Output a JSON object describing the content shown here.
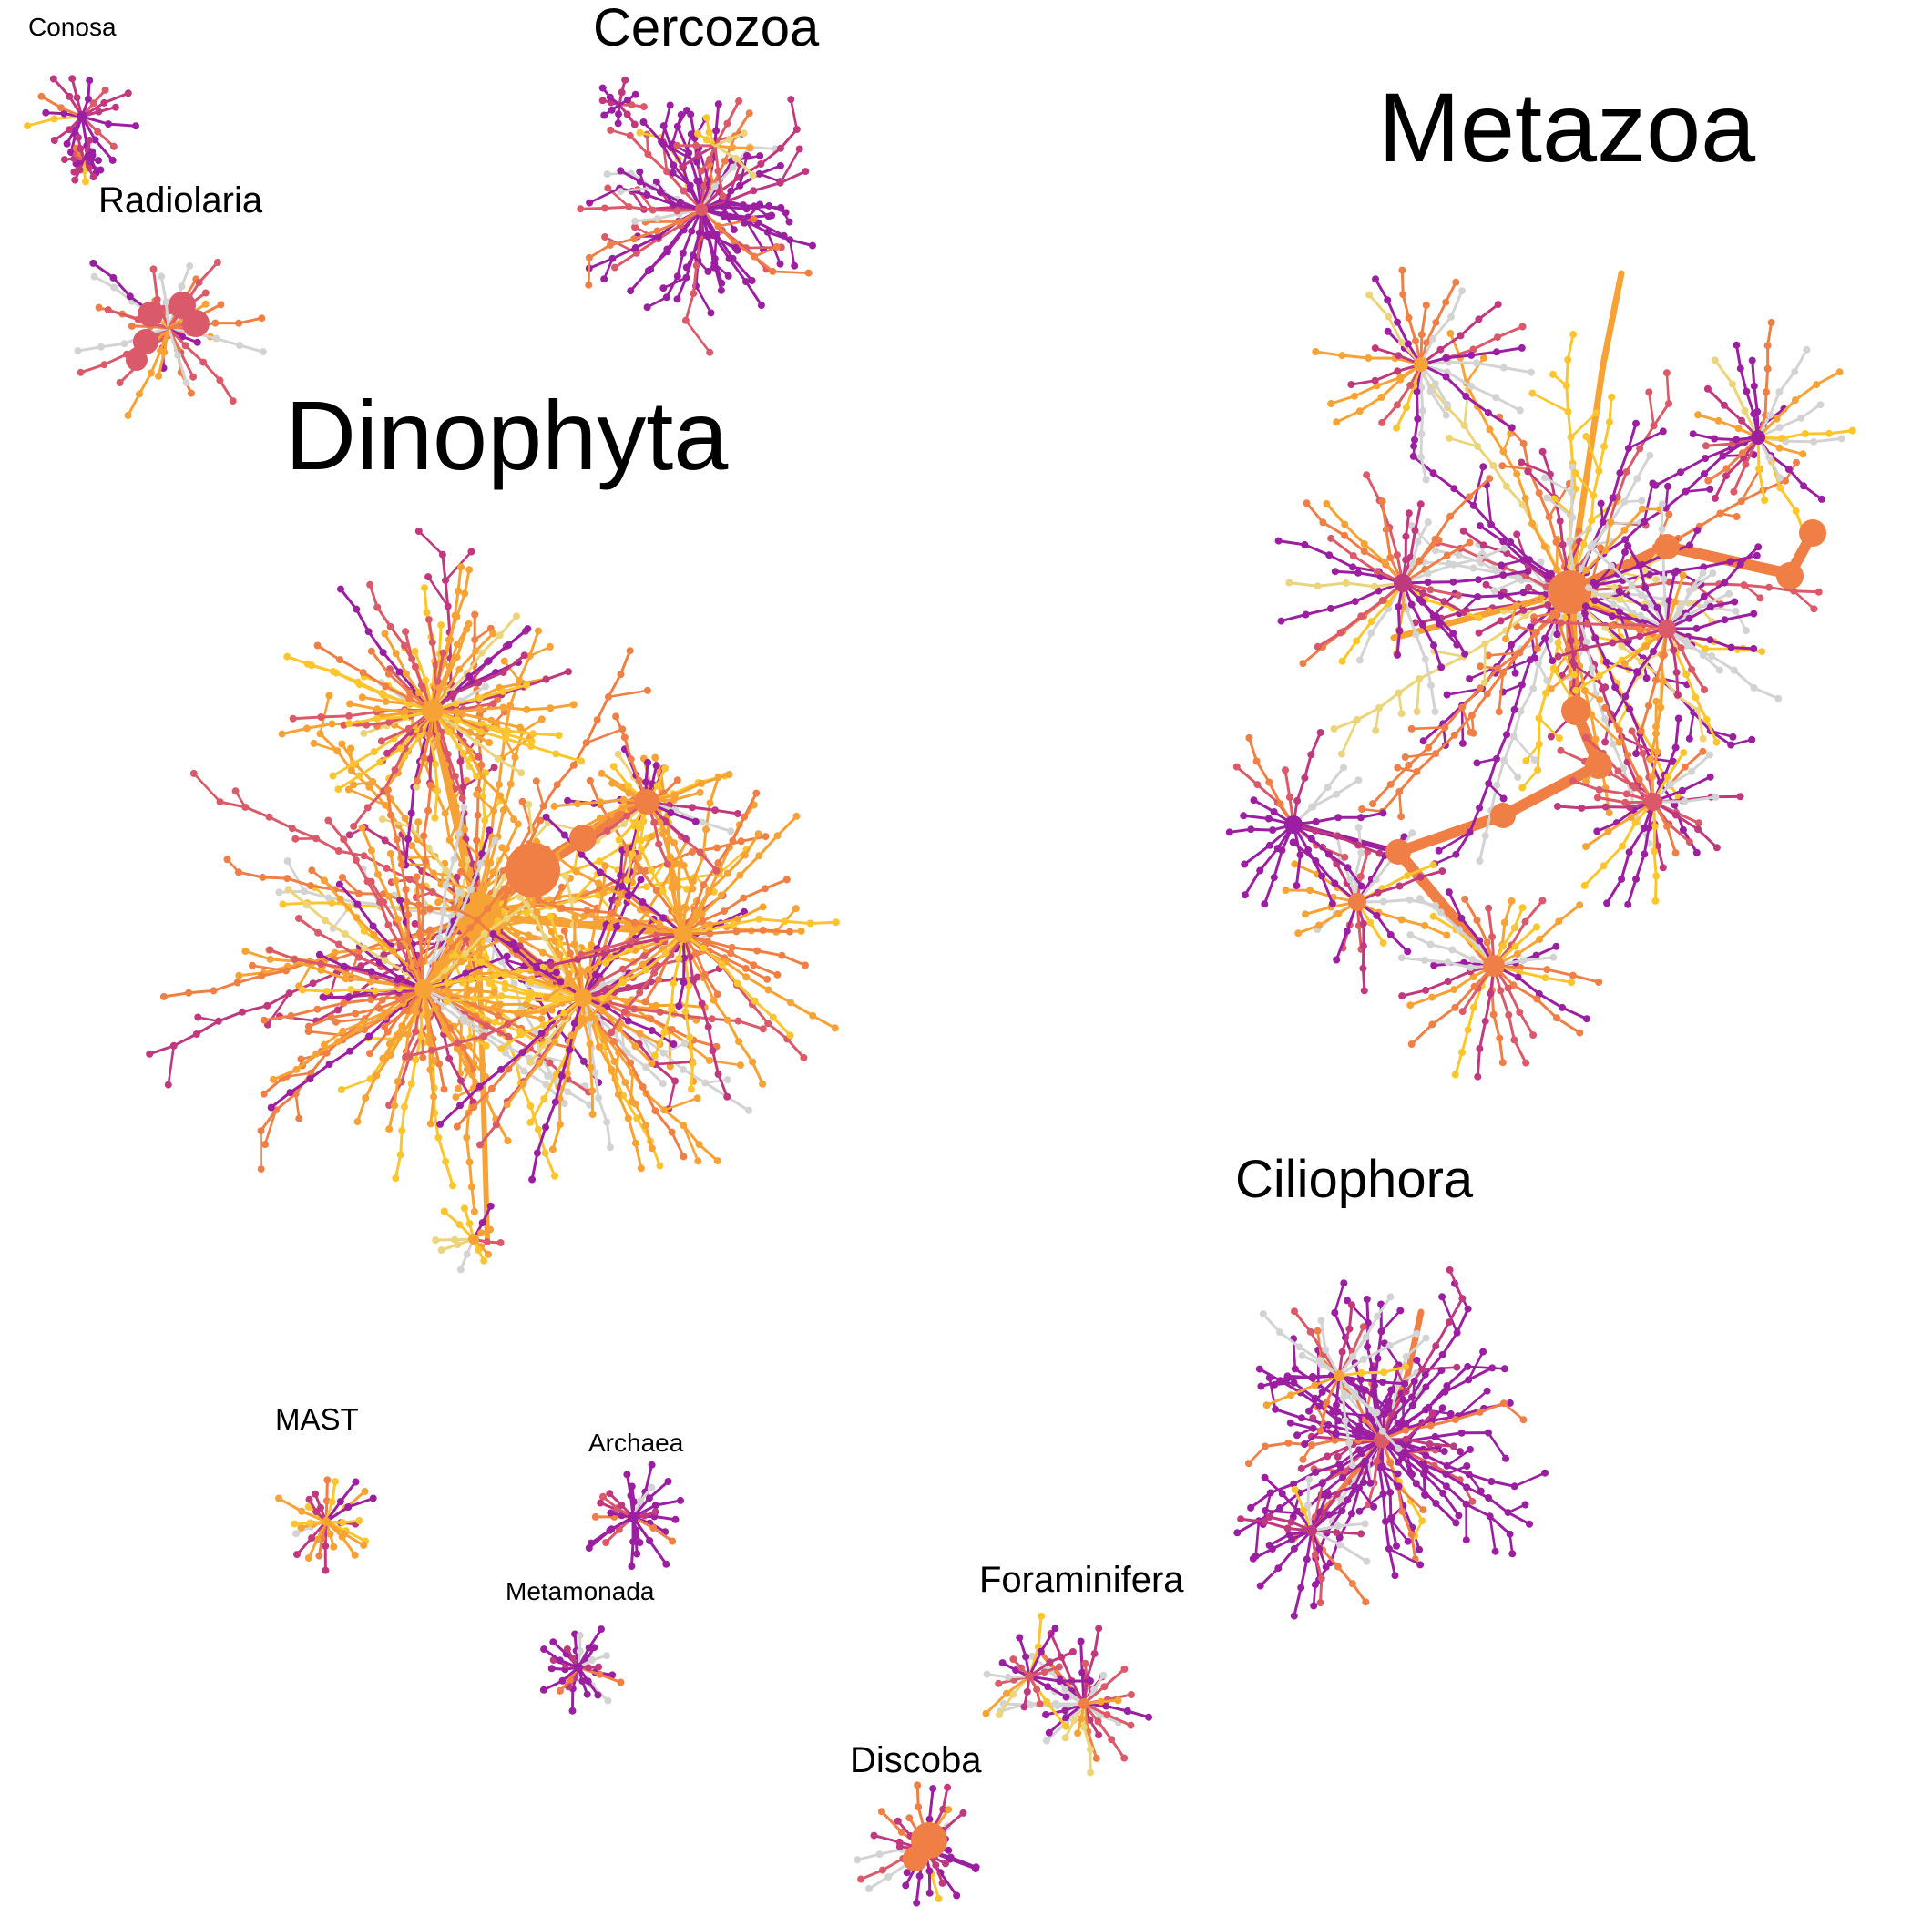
{
  "palette": {
    "purple": "#9B1FA0",
    "magenta": "#C0397F",
    "rose": "#DA5A6A",
    "orange": "#EF7F45",
    "amber": "#F7A234",
    "yellow": "#FBC52E",
    "pale_yellow": "#EBD47A",
    "gray": "#D3D3D3"
  },
  "clusters": [
    {
      "id": "metazoa",
      "label": "Metazoa",
      "dominant": "mixed",
      "hub": "orange"
    },
    {
      "id": "dinophyta",
      "label": "Dinophyta",
      "dominant": "amber",
      "hub": "amber"
    },
    {
      "id": "ciliophora",
      "label": "Ciliophora",
      "dominant": "purple",
      "hub": "magenta"
    },
    {
      "id": "cercozoa",
      "label": "Cercozoa",
      "dominant": "purple",
      "hub": "rose"
    },
    {
      "id": "radiolaria",
      "label": "Radiolaria",
      "dominant": "rose",
      "hub": "rose"
    },
    {
      "id": "conosa",
      "label": "Conosa",
      "dominant": "purple",
      "hub": "purple"
    },
    {
      "id": "mast",
      "label": "MAST",
      "dominant": "amber",
      "hub": "amber"
    },
    {
      "id": "archaea",
      "label": "Archaea",
      "dominant": "purple",
      "hub": "purple"
    },
    {
      "id": "metamonada",
      "label": "Metamonada",
      "dominant": "purple",
      "hub": "purple"
    },
    {
      "id": "foraminifera",
      "label": "Foraminifera",
      "dominant": "mixed",
      "hub": "orange"
    },
    {
      "id": "discoba",
      "label": "Discoba",
      "dominant": "mixed",
      "hub": "orange"
    }
  ]
}
